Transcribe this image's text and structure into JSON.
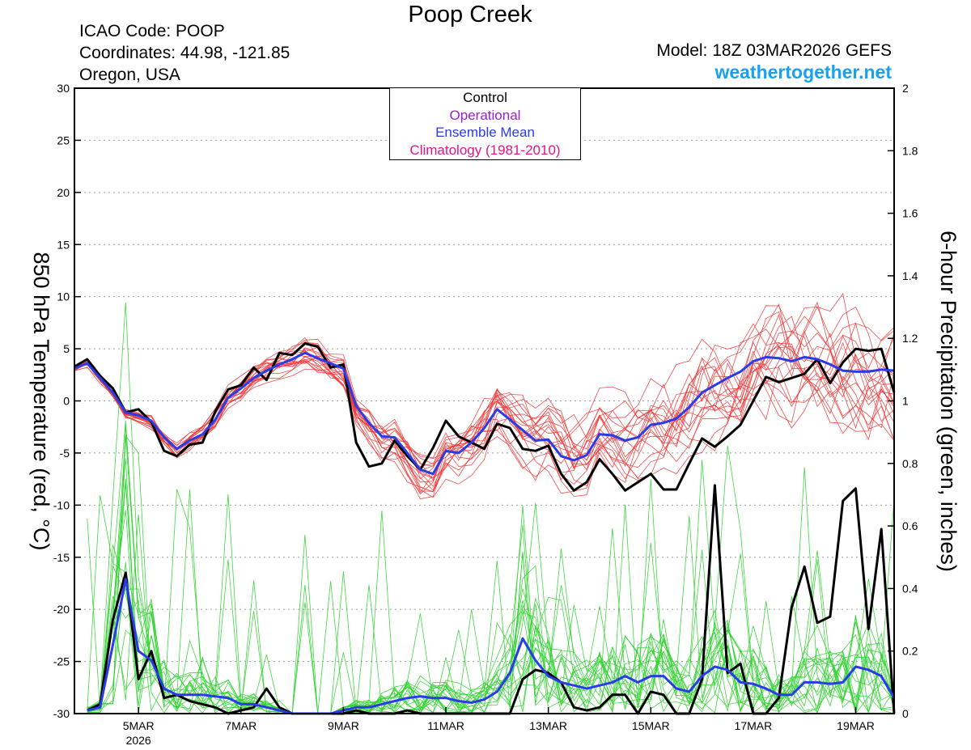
{
  "header": {
    "title": "Poop Creek",
    "icao": "ICAO Code: POOP",
    "coords": "Coordinates: 44.98, -121.85",
    "region": "Oregon, USA",
    "model": "Model: 18Z 03MAR2026 GEFS",
    "site": "weathertogether.net"
  },
  "legend": {
    "control": "Control",
    "operational": "Operational",
    "mean": "Ensemble Mean",
    "climo": "Climatology (1981-2010)"
  },
  "colors": {
    "control": "#000000",
    "operational": "#9a1fc9",
    "mean": "#2a3be8",
    "climo": "#e0158a",
    "members_temp": "#ee3a3a",
    "members_precip": "#2ed22e",
    "site": "#1aa0f0"
  },
  "chart_data": {
    "type": "line",
    "title": "Poop Creek",
    "ylabel_left": "850 hPa Temperature (red, °C)",
    "ylabel_right": "6-hour Precipitation (green, inches)",
    "y_left_range": [
      -30,
      30
    ],
    "y_right_range": [
      0,
      2
    ],
    "y_left_ticks": [
      "30",
      "25",
      "20",
      "15",
      "10",
      "5",
      "0",
      "-5",
      "-10",
      "-15",
      "-20",
      "-25",
      "-30"
    ],
    "y_right_ticks": [
      "2",
      "1.8",
      "1.6",
      "1.4",
      "1.2",
      "1",
      "0.8",
      "0.6",
      "0.4",
      "0.2",
      "0"
    ],
    "x_ticks": [
      "5MAR",
      "7MAR",
      "9MAR",
      "11MAR",
      "13MAR",
      "15MAR",
      "17MAR",
      "19MAR"
    ],
    "x_tick_day": [
      5,
      7,
      9,
      11,
      13,
      15,
      17,
      19
    ],
    "x_year_label": "2026",
    "x_range_days": [
      3.75,
      19.75
    ],
    "grid": "dotted horizontal",
    "series": [
      {
        "name": "Control 850hPa Temperature",
        "axis": "left",
        "x_days": [
          3.75,
          4.0,
          4.25,
          4.5,
          4.75,
          5.0,
          5.25,
          5.5,
          5.75,
          6.0,
          6.25,
          6.5,
          6.75,
          7.0,
          7.25,
          7.5,
          7.75,
          8.0,
          8.25,
          8.5,
          8.75,
          9.0,
          9.25,
          9.5,
          9.75,
          10.0,
          10.25,
          10.5,
          10.75,
          11.0,
          11.25,
          11.5,
          11.75,
          12.0,
          12.25,
          12.5,
          12.75,
          13.0,
          13.25,
          13.5,
          13.75,
          14.0,
          14.25,
          14.5,
          14.75,
          15.0,
          15.25,
          15.5,
          15.75,
          16.0,
          16.25,
          16.5,
          16.75,
          17.0,
          17.25,
          17.5,
          17.75,
          18.0,
          18.25,
          18.5,
          18.75,
          19.0,
          19.25,
          19.5,
          19.75
        ],
        "values": [
          3.3,
          4.0,
          2.4,
          1.2,
          -1.1,
          -0.8,
          -2.0,
          -4.8,
          -5.3,
          -4.2,
          -4.0,
          -1.0,
          1.1,
          1.5,
          3.2,
          2.0,
          4.6,
          4.4,
          5.5,
          5.2,
          3.2,
          3.5,
          -4.0,
          -6.3,
          -6.0,
          -3.8,
          -5.3,
          -6.6,
          -4.5,
          -1.9,
          -3.4,
          -4.0,
          -4.6,
          -2.2,
          -2.6,
          -4.6,
          -4.8,
          -4.3,
          -7.0,
          -8.6,
          -7.8,
          -5.6,
          -7.0,
          -8.6,
          -7.8,
          -7.0,
          -8.5,
          -8.5,
          -6.0,
          -3.6,
          -4.4,
          -3.4,
          -2.3,
          0.0,
          2.3,
          1.8,
          2.2,
          2.6,
          4.0,
          1.7,
          3.7,
          5.0,
          4.8,
          5.0,
          0.8
        ]
      },
      {
        "name": "Ensemble Mean 850hPa Temperature",
        "axis": "left",
        "x_days": [
          3.75,
          4.0,
          4.25,
          4.5,
          4.75,
          5.0,
          5.25,
          5.5,
          5.75,
          6.0,
          6.25,
          6.5,
          6.75,
          7.0,
          7.25,
          7.5,
          7.75,
          8.0,
          8.25,
          8.5,
          8.75,
          9.0,
          9.25,
          9.5,
          9.75,
          10.0,
          10.25,
          10.5,
          10.75,
          11.0,
          11.25,
          11.5,
          11.75,
          12.0,
          12.25,
          12.5,
          12.75,
          13.0,
          13.25,
          13.5,
          13.75,
          14.0,
          14.25,
          14.5,
          14.75,
          15.0,
          15.25,
          15.5,
          15.75,
          16.0,
          16.25,
          16.5,
          16.75,
          17.0,
          17.25,
          17.5,
          17.75,
          18.0,
          18.25,
          18.5,
          18.75,
          19.0,
          19.25,
          19.5,
          19.75
        ],
        "values": [
          3.1,
          3.6,
          2.2,
          0.8,
          -1.1,
          -1.4,
          -1.9,
          -3.5,
          -4.6,
          -3.8,
          -3.2,
          -1.8,
          0.3,
          1.2,
          2.2,
          2.9,
          3.5,
          4.0,
          4.6,
          4.1,
          3.6,
          3.1,
          -0.5,
          -2.1,
          -3.4,
          -3.5,
          -5.0,
          -6.6,
          -7.0,
          -4.8,
          -5.0,
          -4.0,
          -2.6,
          -0.8,
          -1.8,
          -2.8,
          -3.8,
          -3.7,
          -5.3,
          -5.7,
          -5.2,
          -3.2,
          -3.3,
          -3.8,
          -3.5,
          -2.3,
          -2.1,
          -1.7,
          -0.6,
          0.8,
          1.5,
          2.2,
          2.8,
          3.8,
          4.2,
          4.1,
          3.8,
          4.2,
          4.0,
          3.5,
          2.9,
          2.8,
          2.8,
          3.0,
          2.9
        ]
      },
      {
        "name": "Control 6-hour Precipitation",
        "axis": "right",
        "x_days": [
          4.0,
          4.25,
          4.5,
          4.75,
          5.0,
          5.25,
          5.5,
          5.75,
          6.0,
          6.25,
          6.5,
          6.75,
          7.0,
          7.25,
          7.5,
          7.75,
          8.0,
          8.25,
          8.5,
          8.75,
          9.0,
          9.25,
          9.5,
          9.75,
          10.0,
          10.25,
          10.5,
          10.75,
          11.0,
          11.25,
          11.5,
          11.75,
          12.0,
          12.25,
          12.5,
          12.75,
          13.0,
          13.25,
          13.5,
          13.75,
          14.0,
          14.25,
          14.5,
          14.75,
          15.0,
          15.25,
          15.5,
          15.75,
          16.0,
          16.25,
          16.5,
          16.75,
          17.0,
          17.25,
          17.5,
          17.75,
          18.0,
          18.25,
          18.5,
          18.75,
          19.0,
          19.25,
          19.5,
          19.75
        ],
        "values": [
          0.01,
          0.03,
          0.3,
          0.45,
          0.11,
          0.2,
          0.05,
          0.06,
          0.04,
          0.03,
          0.02,
          0.0,
          0.01,
          0.02,
          0.08,
          0.02,
          0.0,
          0.0,
          0.0,
          0.0,
          0.0,
          0.01,
          0.0,
          0.0,
          0.0,
          0.01,
          0.0,
          0.0,
          0.0,
          0.0,
          0.0,
          0.0,
          0.0,
          0.0,
          0.11,
          0.14,
          0.13,
          0.1,
          0.02,
          0.01,
          0.02,
          0.06,
          0.06,
          0.0,
          0.07,
          0.06,
          0.0,
          0.0,
          0.11,
          0.73,
          0.13,
          0.16,
          0.0,
          0.0,
          0.05,
          0.34,
          0.47,
          0.29,
          0.31,
          0.68,
          0.72,
          0.27,
          0.59,
          0.0
        ]
      },
      {
        "name": "Ensemble Mean 6-hour Precipitation",
        "axis": "right",
        "x_days": [
          4.0,
          4.25,
          4.5,
          4.75,
          5.0,
          5.25,
          5.5,
          5.75,
          6.0,
          6.25,
          6.5,
          6.75,
          7.0,
          7.25,
          7.5,
          7.75,
          8.0,
          8.25,
          8.5,
          8.75,
          9.0,
          9.25,
          9.5,
          9.75,
          10.0,
          10.25,
          10.5,
          10.75,
          11.0,
          11.25,
          11.5,
          11.75,
          12.0,
          12.25,
          12.5,
          12.75,
          13.0,
          13.25,
          13.5,
          13.75,
          14.0,
          14.25,
          14.5,
          14.75,
          15.0,
          15.25,
          15.5,
          15.75,
          16.0,
          16.25,
          16.5,
          16.75,
          17.0,
          17.25,
          17.5,
          17.75,
          18.0,
          18.25,
          18.5,
          18.75,
          19.0,
          19.25,
          19.5,
          19.75
        ],
        "values": [
          0.01,
          0.02,
          0.22,
          0.43,
          0.2,
          0.17,
          0.08,
          0.06,
          0.06,
          0.06,
          0.055,
          0.05,
          0.03,
          0.03,
          0.02,
          0.01,
          0.0,
          0.0,
          0.0,
          0.0,
          0.01,
          0.02,
          0.02,
          0.03,
          0.04,
          0.05,
          0.055,
          0.05,
          0.05,
          0.04,
          0.035,
          0.045,
          0.07,
          0.13,
          0.24,
          0.17,
          0.12,
          0.1,
          0.09,
          0.08,
          0.09,
          0.1,
          0.12,
          0.1,
          0.12,
          0.12,
          0.08,
          0.07,
          0.12,
          0.15,
          0.14,
          0.1,
          0.095,
          0.08,
          0.06,
          0.06,
          0.1,
          0.1,
          0.095,
          0.1,
          0.15,
          0.14,
          0.12,
          0.05
        ]
      }
    ]
  }
}
